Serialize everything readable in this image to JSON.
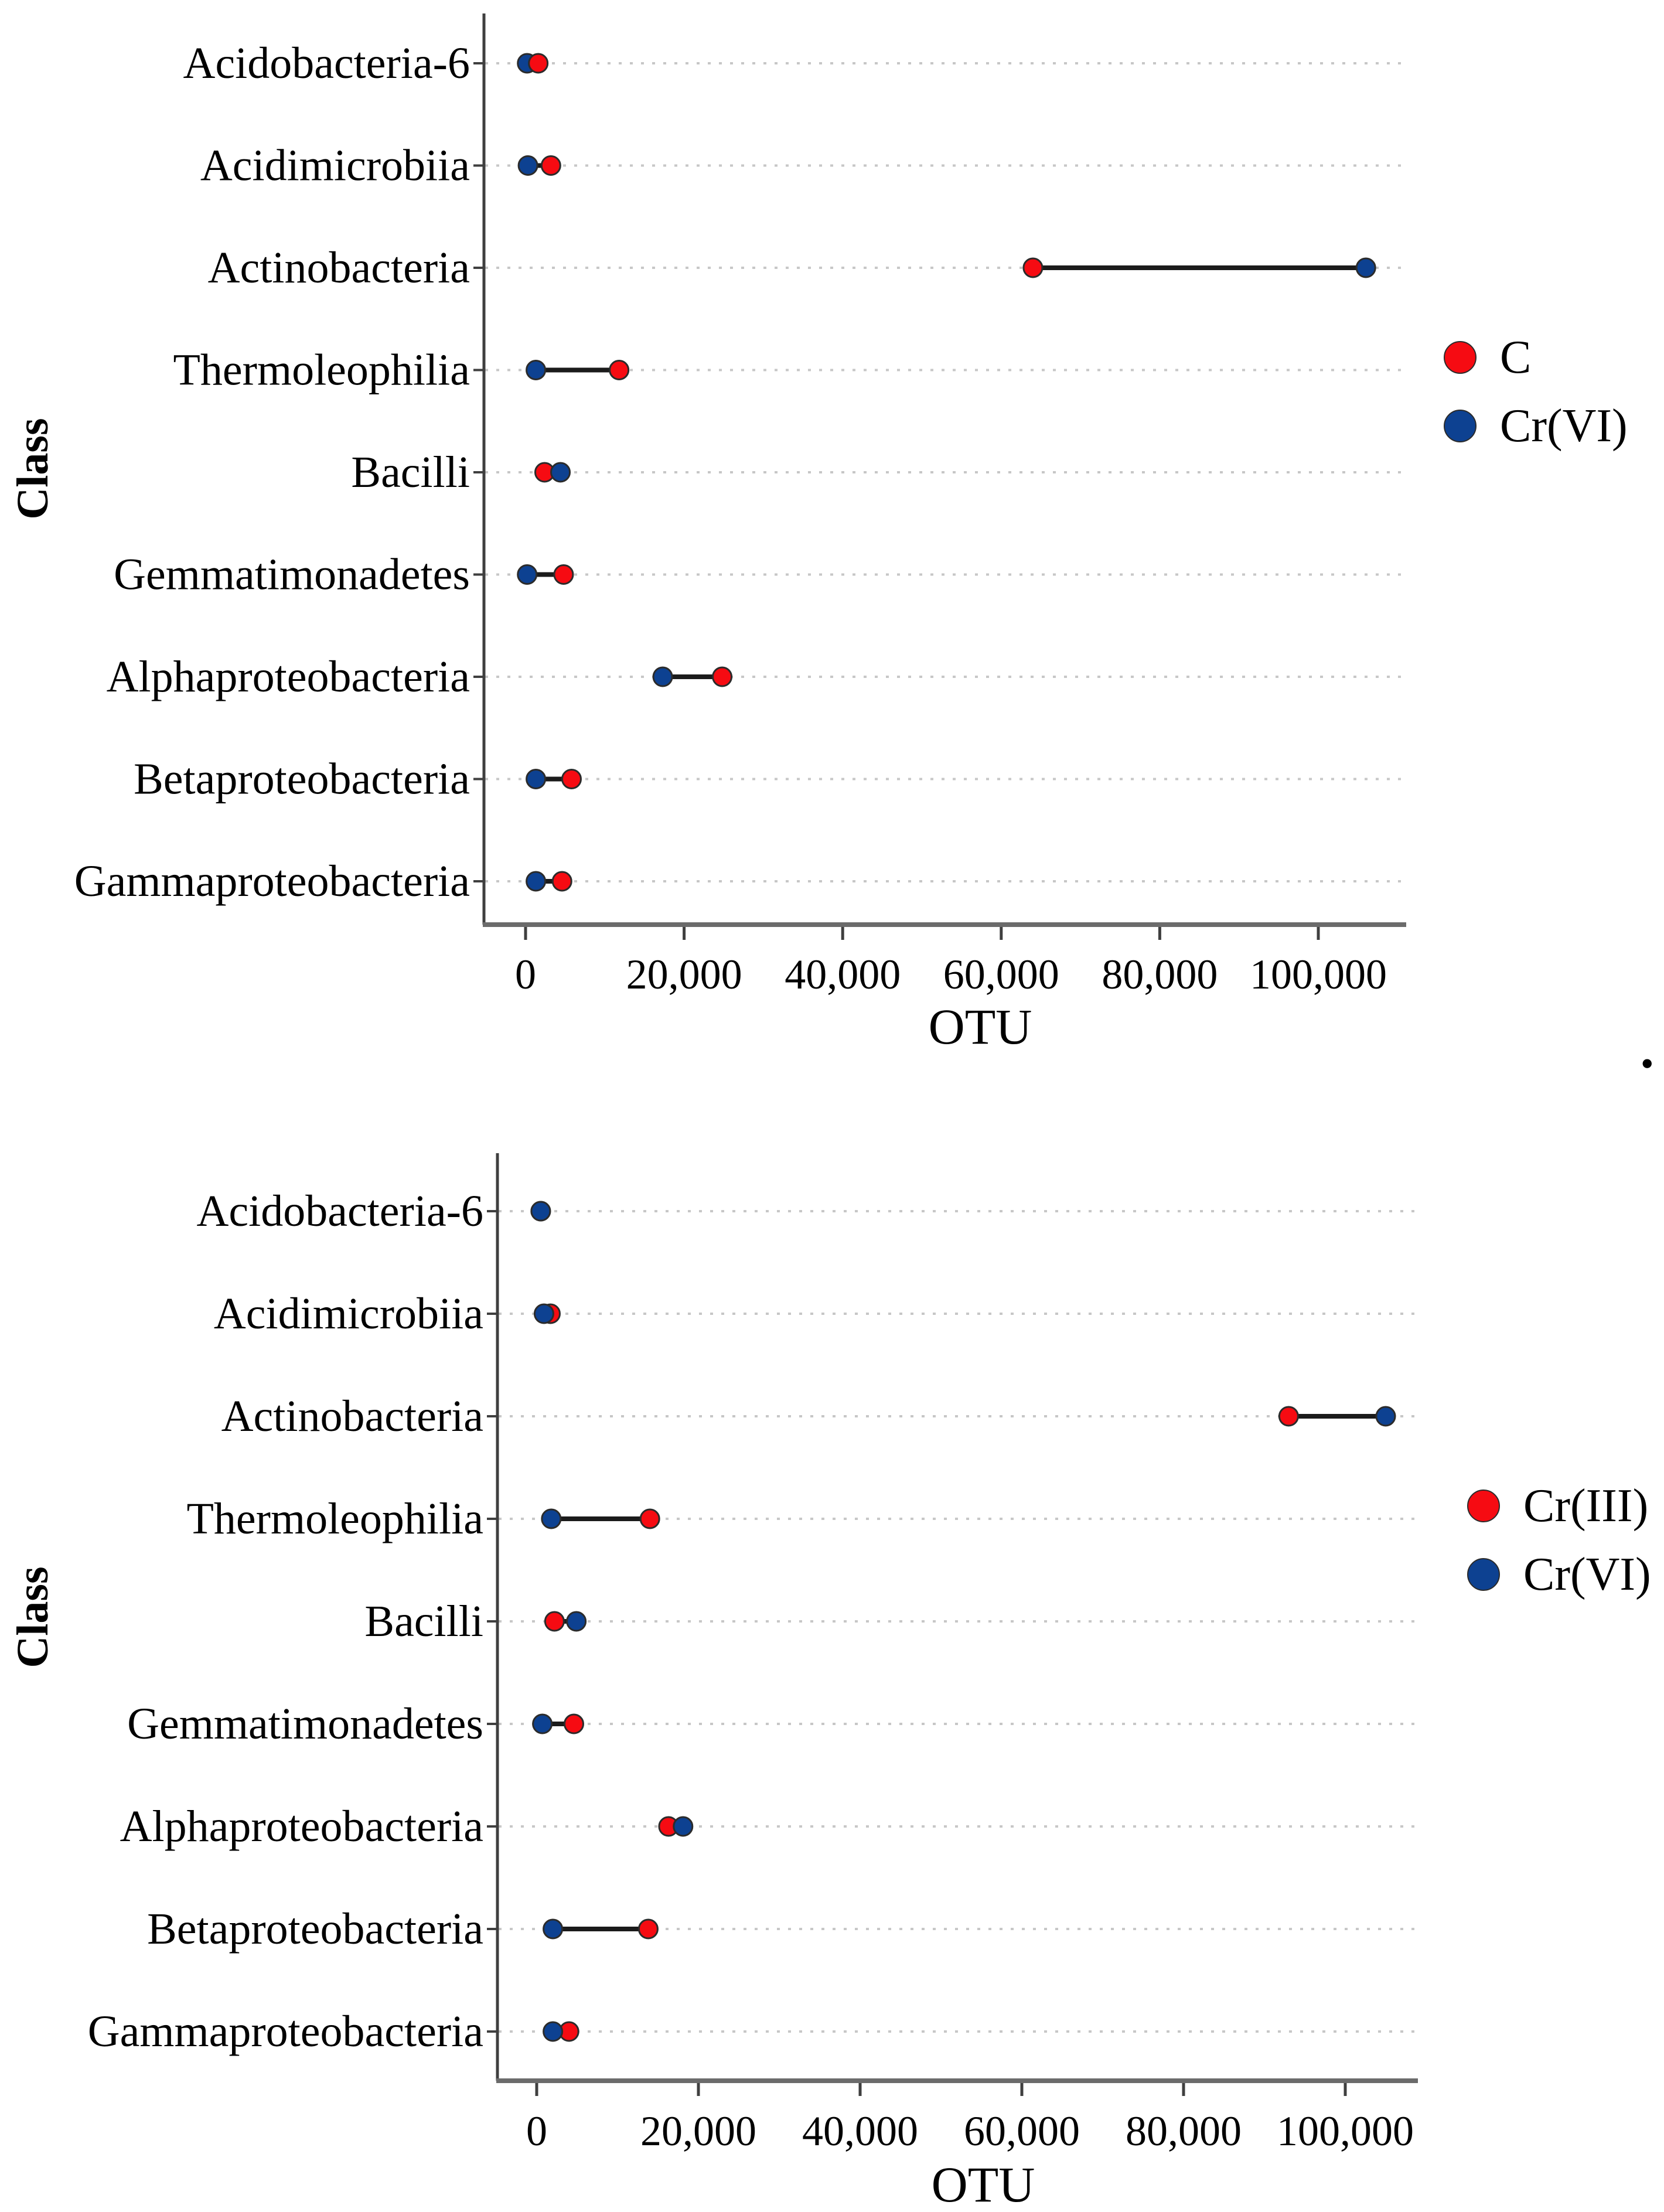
{
  "figure": {
    "background": "#ffffff",
    "trailing_period_mark": ".",
    "colors": {
      "red_series": "#f60b12",
      "blue_series": "#0d4191",
      "connector": "#1b1b1b",
      "dot_outline": "#2b2b2b",
      "y_axis": "#3f3f3f",
      "x_axis": "#6b6b6b",
      "gridline": "#c7c7c7",
      "text": "#000000"
    }
  },
  "chart_data": [
    {
      "type": "dumbbell-dot",
      "panel": "top",
      "xlabel": "OTU",
      "ylabel": "Class",
      "grid": "dotted-horizontal",
      "legend_position": "right-middle",
      "xlim": [
        0,
        111000
      ],
      "categories": [
        "Acidobacteria-6",
        "Acidimicrobiia",
        "Actinobacteria",
        "Thermoleophilia",
        "Bacilli",
        "Gemmatimonadetes",
        "Alphaproteobacteria",
        "Betaproteobacteria",
        "Gammaproteobacteria"
      ],
      "x_ticks": [
        {
          "value": 0,
          "label": "0"
        },
        {
          "value": 20000,
          "label": "20,000"
        },
        {
          "value": 40000,
          "label": "40,000"
        },
        {
          "value": 60000,
          "label": "60,000"
        },
        {
          "value": 80000,
          "label": "80,000"
        },
        {
          "value": 100000,
          "label": "100,000"
        }
      ],
      "series": [
        {
          "name": "C",
          "color": "#f60b12",
          "values": [
            1600,
            3200,
            64000,
            11800,
            2400,
            4800,
            24800,
            5800,
            4600
          ]
        },
        {
          "name": "Cr(VI)",
          "color": "#0d4191",
          "values": [
            200,
            300,
            106000,
            1300,
            4400,
            200,
            17300,
            1300,
            1300
          ]
        }
      ]
    },
    {
      "type": "dumbbell-dot",
      "panel": "bottom",
      "xlabel": "OTU",
      "ylabel": "Class",
      "grid": "dotted-horizontal",
      "legend_position": "right-middle",
      "xlim": [
        0,
        109000
      ],
      "categories": [
        "Acidobacteria-6",
        "Acidimicrobiia",
        "Actinobacteria",
        "Thermoleophilia",
        "Bacilli",
        "Gemmatimonadetes",
        "Alphaproteobacteria",
        "Betaproteobacteria",
        "Gammaproteobacteria"
      ],
      "x_ticks": [
        {
          "value": 0,
          "label": "0"
        },
        {
          "value": 20000,
          "label": "20,000"
        },
        {
          "value": 40000,
          "label": "40,000"
        },
        {
          "value": 60000,
          "label": "60,000"
        },
        {
          "value": 80000,
          "label": "80,000"
        },
        {
          "value": 100000,
          "label": "100,000"
        }
      ],
      "series": [
        {
          "name": "Cr(III)",
          "color": "#f60b12",
          "values": [
            500,
            1700,
            93000,
            14000,
            2200,
            4600,
            16300,
            13800,
            4000
          ]
        },
        {
          "name": "Cr(VI)",
          "color": "#0d4191",
          "values": [
            500,
            900,
            105000,
            1800,
            4900,
            700,
            18100,
            2000,
            2000
          ]
        }
      ]
    }
  ]
}
